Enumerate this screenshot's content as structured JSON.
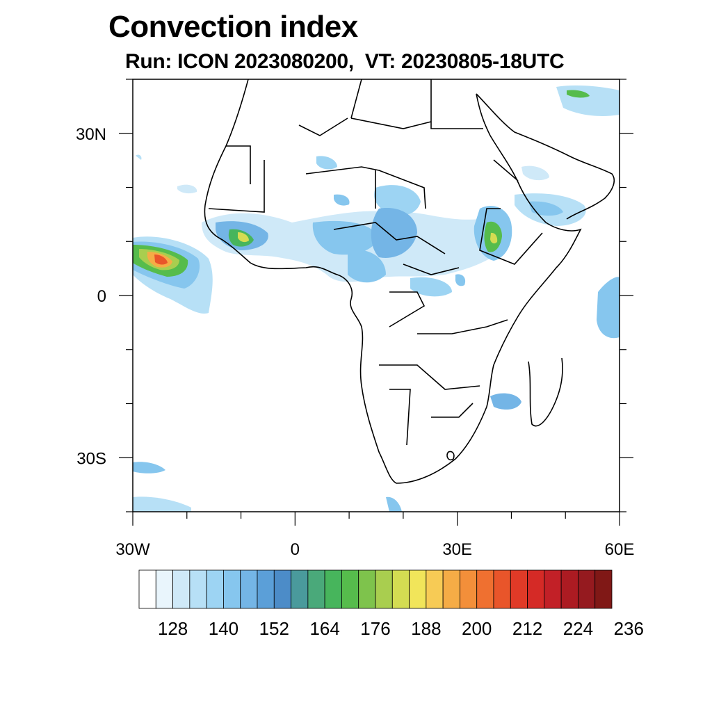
{
  "title": "Convection index",
  "subtitle": "Run: ICON 2023080200,  VT: 20230805-18UTC",
  "map": {
    "lon_range": [
      -30,
      60
    ],
    "lat_range": [
      -40,
      40
    ],
    "lon_ticks": [
      {
        "value": -30,
        "label": "30W"
      },
      {
        "value": 0,
        "label": "0"
      },
      {
        "value": 30,
        "label": "30E"
      },
      {
        "value": 60,
        "label": "60E"
      }
    ],
    "lat_ticks": [
      {
        "value": 30,
        "label": "30N"
      },
      {
        "value": 0,
        "label": "0"
      },
      {
        "value": -30,
        "label": "30S"
      }
    ],
    "colorbar": {
      "colors": [
        "#ffffff",
        "#e9f5fc",
        "#cfe9f8",
        "#b7e0f6",
        "#9dd4f3",
        "#86c6ee",
        "#74b5e6",
        "#5b9fd8",
        "#4c8cc8",
        "#4a9a9c",
        "#4aa97a",
        "#47b55c",
        "#56bc4c",
        "#7ec34c",
        "#a9ce4f",
        "#d4dc52",
        "#f1e55a",
        "#f7cb55",
        "#f5ac46",
        "#f38f3a",
        "#ef7030",
        "#e9552a",
        "#e03a27",
        "#d52a26",
        "#c22027",
        "#ac1b22",
        "#951a1f",
        "#801816"
      ],
      "labels": [
        "128",
        "140",
        "152",
        "164",
        "176",
        "188",
        "200",
        "212",
        "224",
        "236"
      ]
    }
  }
}
